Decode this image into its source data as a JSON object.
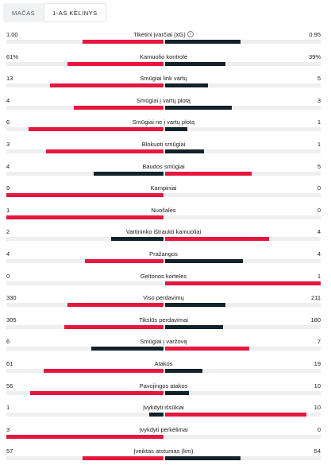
{
  "tabs": [
    {
      "label": "MAČAS",
      "active": false
    },
    {
      "label": "1-AS KĖLINYS",
      "active": true
    }
  ],
  "colors": {
    "winner": "#e5173f",
    "loser": "#13212b",
    "track": "#eeeff1"
  },
  "stats": [
    {
      "name": "Tikėtini įvarčiai (xG)",
      "home": "1.00",
      "away": "0.95",
      "home_share": 0.5128,
      "away_share": 0.4872,
      "info_icon": true
    },
    {
      "name": "Kamuolio kontrolė",
      "home": "61%",
      "away": "39%",
      "home_share": 0.61,
      "away_share": 0.39
    },
    {
      "name": "Smūgiai link vartų",
      "home": "13",
      "away": "5",
      "home_share": 0.7222,
      "away_share": 0.2778
    },
    {
      "name": "Smūgiai į vartų plotą",
      "home": "4",
      "away": "3",
      "home_share": 0.5714,
      "away_share": 0.4286
    },
    {
      "name": "Smūgiai ne į vartų plotą",
      "home": "6",
      "away": "1",
      "home_share": 0.8571,
      "away_share": 0.1429
    },
    {
      "name": "Blokuoti smūgiai",
      "home": "3",
      "away": "1",
      "home_share": 0.75,
      "away_share": 0.25
    },
    {
      "name": "Baudos smūgiai",
      "home": "4",
      "away": "5",
      "home_share": 0.4444,
      "away_share": 0.5556
    },
    {
      "name": "Kampiniai",
      "home": "9",
      "away": "0",
      "home_share": 1,
      "away_share": 0
    },
    {
      "name": "Nuošalės",
      "home": "1",
      "away": "0",
      "home_share": 1,
      "away_share": 0
    },
    {
      "name": "Vartininko ištraukti kamuoliai",
      "home": "2",
      "away": "4",
      "home_share": 0.3333,
      "away_share": 0.6667
    },
    {
      "name": "Pražangos",
      "home": "4",
      "away": "4",
      "home_share": 0.5,
      "away_share": 0.5
    },
    {
      "name": "Geltonos kortelės",
      "home": "0",
      "away": "1",
      "home_share": 0,
      "away_share": 1
    },
    {
      "name": "Viso perdavimų",
      "home": "330",
      "away": "211",
      "home_share": 0.61,
      "away_share": 0.39
    },
    {
      "name": "Tikslūs perdavimai",
      "home": "305",
      "away": "180",
      "home_share": 0.6289,
      "away_share": 0.3711
    },
    {
      "name": "Smūgiai į varžovą",
      "home": "6",
      "away": "7",
      "home_share": 0.4615,
      "away_share": 0.5385
    },
    {
      "name": "Atakos",
      "home": "61",
      "away": "19",
      "home_share": 0.7625,
      "away_share": 0.2375
    },
    {
      "name": "Pavojingos atakos",
      "home": "56",
      "away": "10",
      "home_share": 0.8485,
      "away_share": 0.1515
    },
    {
      "name": "Įvykdyti išsūkiai",
      "home": "1",
      "away": "10",
      "home_share": 0.0909,
      "away_share": 0.9091
    },
    {
      "name": "Įvykdyti perkėlimai",
      "home": "3",
      "away": "0",
      "home_share": 1,
      "away_share": 0
    },
    {
      "name": "Įveiktas atstumas (km)",
      "home": "57",
      "away": "54",
      "home_share": 0.5135,
      "away_share": 0.4865
    }
  ]
}
